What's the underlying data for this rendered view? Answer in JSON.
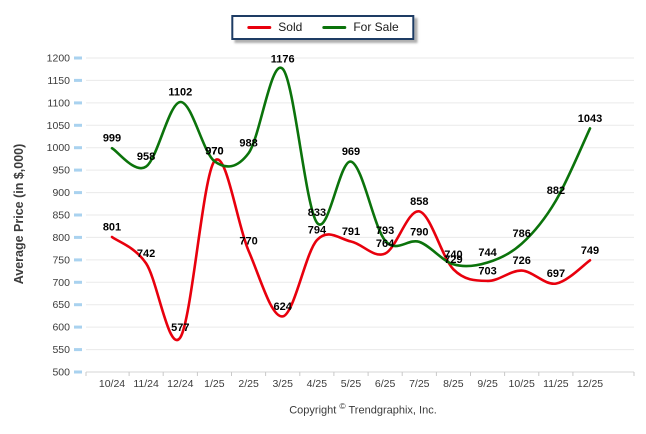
{
  "chart_data": {
    "type": "line",
    "categories": [
      "10/24",
      "11/24",
      "12/24",
      "1/25",
      "2/25",
      "3/25",
      "4/25",
      "5/25",
      "6/25",
      "7/25",
      "8/25",
      "9/25",
      "10/25",
      "11/25",
      "12/25"
    ],
    "series": [
      {
        "name": "Sold",
        "color": "#e8000d",
        "values": [
          801,
          742,
          577,
          970,
          770,
          624,
          794,
          791,
          764,
          858,
          729,
          703,
          726,
          697,
          749
        ]
      },
      {
        "name": "For Sale",
        "color": "#0b730b",
        "values": [
          999,
          958,
          1102,
          970,
          988,
          1176,
          833,
          969,
          793,
          790,
          740,
          744,
          786,
          882,
          1043
        ]
      }
    ],
    "title": "",
    "xlabel": "",
    "ylabel": "Average Price (in $,000)",
    "ylim": [
      500,
      1200
    ],
    "y_ticks": [
      500,
      550,
      600,
      650,
      700,
      750,
      800,
      850,
      900,
      950,
      1000,
      1050,
      1100,
      1150,
      1200
    ],
    "grid": "horizontal",
    "legend_position": "top-center",
    "data_labels": true,
    "curve": "smooth"
  },
  "footer": {
    "copyright_prefix": "Copyright",
    "copyright_symbol": "©",
    "copyright_suffix": " Trendgraphix, Inc."
  },
  "colors": {
    "legend_border": "#1e3c64",
    "gridline": "#eaeaea",
    "axis_line": "#d4d4d4",
    "x_tick": "#c9c9c9",
    "y_tick_stub": "#a9d2ef",
    "tick_label": "#3b3b3b",
    "data_label": "#000000"
  }
}
